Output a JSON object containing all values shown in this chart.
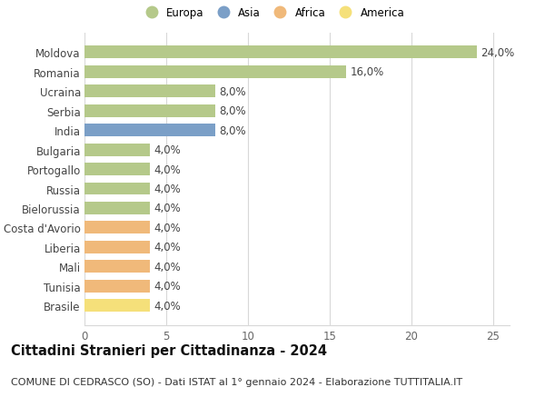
{
  "categories": [
    "Brasile",
    "Tunisia",
    "Mali",
    "Liberia",
    "Costa d'Avorio",
    "Bielorussia",
    "Russia",
    "Portogallo",
    "Bulgaria",
    "India",
    "Serbia",
    "Ucraina",
    "Romania",
    "Moldova"
  ],
  "values": [
    4.0,
    4.0,
    4.0,
    4.0,
    4.0,
    4.0,
    4.0,
    4.0,
    4.0,
    8.0,
    8.0,
    8.0,
    16.0,
    24.0
  ],
  "bar_colors": [
    "#f5e07a",
    "#f0b97a",
    "#f0b97a",
    "#f0b97a",
    "#f0b97a",
    "#b5c98a",
    "#b5c98a",
    "#b5c98a",
    "#b5c98a",
    "#7b9fc7",
    "#b5c98a",
    "#b5c98a",
    "#b5c98a",
    "#b5c98a"
  ],
  "continents": [
    "America",
    "Africa",
    "Africa",
    "Africa",
    "Africa",
    "Europa",
    "Europa",
    "Europa",
    "Europa",
    "Asia",
    "Europa",
    "Europa",
    "Europa",
    "Europa"
  ],
  "legend_labels": [
    "Europa",
    "Asia",
    "Africa",
    "America"
  ],
  "legend_colors": [
    "#b5c98a",
    "#7b9fc7",
    "#f0b97a",
    "#f5e07a"
  ],
  "title": "Cittadini Stranieri per Cittadinanza - 2024",
  "subtitle": "COMUNE DI CEDRASCO (SO) - Dati ISTAT al 1° gennaio 2024 - Elaborazione TUTTITALIA.IT",
  "xlim": [
    0,
    26
  ],
  "xticks": [
    0,
    5,
    10,
    15,
    20,
    25
  ],
  "background_color": "#ffffff",
  "grid_color": "#d8d8d8",
  "bar_height": 0.65,
  "label_fontsize": 8.5,
  "title_fontsize": 10.5,
  "subtitle_fontsize": 8.0
}
